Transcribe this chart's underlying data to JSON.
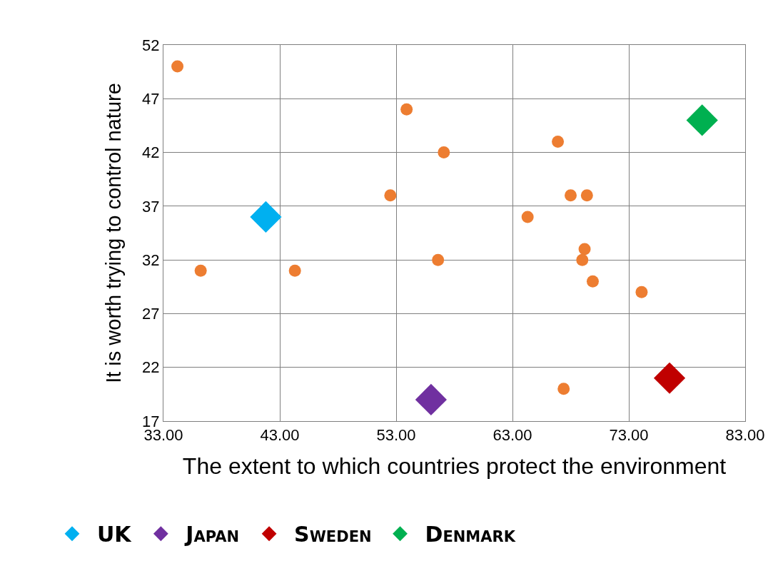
{
  "chart_data": {
    "type": "scatter",
    "xlabel": "The extent to which countries protect the environment",
    "ylabel": "It is worth trying to control nature",
    "xlim": [
      33,
      83
    ],
    "xticks": [
      {
        "value": 33,
        "label": "33.00"
      },
      {
        "value": 43,
        "label": "43.00"
      },
      {
        "value": 53,
        "label": "53.00"
      },
      {
        "value": 63,
        "label": "63.00"
      },
      {
        "value": 73,
        "label": "73.00"
      },
      {
        "value": 83,
        "label": "83.00"
      }
    ],
    "ylim": [
      17,
      52
    ],
    "yticks": [
      17,
      22,
      27,
      32,
      37,
      42,
      47,
      52
    ],
    "grid": true,
    "legend": "bottom",
    "series": [
      {
        "color": "#ed7d31",
        "marker": "circle",
        "x": [
          34.2,
          36.2,
          44.3,
          52.5,
          53.9,
          57.1,
          56.6,
          64.3,
          66.9,
          68.0,
          69.4,
          69.2,
          69.0,
          69.9,
          74.1,
          67.4
        ],
        "values": [
          50,
          31,
          31,
          38,
          46,
          42,
          32,
          36,
          43,
          38,
          38,
          33,
          32,
          30,
          29,
          20
        ]
      },
      {
        "name": "UK",
        "color": "#00b0f0",
        "marker": "diamond",
        "x": [
          41.8
        ],
        "values": [
          36
        ]
      },
      {
        "name": "Japan",
        "color": "#7030a0",
        "marker": "diamond",
        "x": [
          56.0
        ],
        "values": [
          19
        ]
      },
      {
        "name": "Sweden",
        "color": "#c00000",
        "marker": "diamond",
        "x": [
          76.5
        ],
        "values": [
          21
        ]
      },
      {
        "name": "Denmark",
        "color": "#00b050",
        "marker": "diamond",
        "x": [
          79.3
        ],
        "values": [
          45
        ]
      }
    ]
  }
}
